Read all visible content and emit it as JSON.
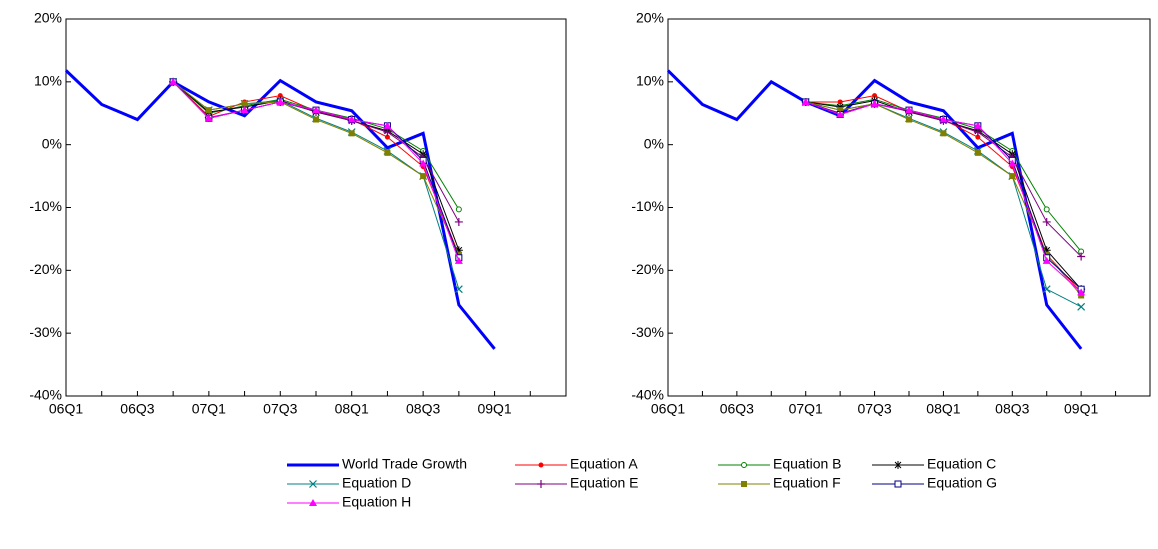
{
  "chart_data": [
    {
      "type": "line",
      "categories": [
        "06Q1",
        null,
        "06Q3",
        null,
        "07Q1",
        null,
        "07Q3",
        null,
        "08Q1",
        null,
        "08Q3",
        null,
        "09Q1",
        null
      ],
      "ylim": [
        -40,
        20
      ],
      "yticks": [
        {
          "value": -40,
          "label": "-40%"
        },
        {
          "value": -30,
          "label": "-30%"
        },
        {
          "value": -20,
          "label": "-20%"
        },
        {
          "value": -10,
          "label": "-10%"
        },
        {
          "value": 0,
          "label": "0%"
        },
        {
          "value": 10,
          "label": "10%"
        },
        {
          "value": 20,
          "label": "20%"
        }
      ],
      "series": [
        {
          "name": "World Trade Growth",
          "color": "#0000ff",
          "marker": "none",
          "values": [
            11.8,
            6.4,
            4.0,
            10.0,
            6.8,
            4.6,
            10.2,
            6.8,
            5.4,
            -0.5,
            1.8,
            -25.5,
            -32.5,
            null
          ]
        },
        {
          "name": "Equation A",
          "color": "#ff0000",
          "marker": "dot",
          "values": [
            null,
            null,
            null,
            10.0,
            4.5,
            6.8,
            7.8,
            5.3,
            4.0,
            1.2,
            -3.5,
            -17.5,
            null,
            null
          ]
        },
        {
          "name": "Equation B",
          "color": "#008000",
          "marker": "circle",
          "values": [
            null,
            null,
            null,
            10.0,
            5.0,
            6.2,
            7.2,
            5.5,
            4.2,
            2.5,
            -1.0,
            -10.3,
            null,
            null
          ]
        },
        {
          "name": "Equation C",
          "color": "#000000",
          "marker": "star",
          "values": [
            null,
            null,
            null,
            10.0,
            5.2,
            6.0,
            7.0,
            5.2,
            3.8,
            2.2,
            -1.5,
            -16.8,
            null,
            null
          ]
        },
        {
          "name": "Equation D",
          "color": "#008080",
          "marker": "x",
          "values": [
            null,
            null,
            null,
            10.0,
            5.5,
            6.5,
            7.0,
            4.2,
            2.0,
            -1.0,
            -5.0,
            -23.0,
            null,
            null
          ]
        },
        {
          "name": "Equation E",
          "color": "#800080",
          "marker": "plus",
          "values": [
            null,
            null,
            null,
            10.0,
            4.3,
            5.5,
            6.8,
            5.3,
            3.8,
            2.0,
            -2.0,
            -12.3,
            null,
            null
          ]
        },
        {
          "name": "Equation F",
          "color": "#808000",
          "marker": "square",
          "values": [
            null,
            null,
            null,
            10.0,
            5.5,
            6.5,
            6.8,
            4.0,
            1.8,
            -1.3,
            -5.0,
            -17.5,
            null,
            null
          ]
        },
        {
          "name": "Equation G",
          "color": "#000080",
          "marker": "hollow-square",
          "values": [
            null,
            null,
            null,
            10.0,
            4.2,
            5.5,
            6.8,
            5.5,
            4.0,
            3.0,
            -2.5,
            -18.0,
            null,
            null
          ]
        },
        {
          "name": "Equation H",
          "color": "#ff00ff",
          "marker": "triangle",
          "values": [
            null,
            null,
            null,
            10.0,
            4.2,
            5.5,
            6.8,
            5.5,
            4.0,
            3.0,
            -3.0,
            -18.5,
            null,
            null
          ]
        }
      ]
    },
    {
      "type": "line",
      "categories": [
        "06Q1",
        null,
        "06Q3",
        null,
        "07Q1",
        null,
        "07Q3",
        null,
        "08Q1",
        null,
        "08Q3",
        null,
        "09Q1",
        null
      ],
      "ylim": [
        -40,
        20
      ],
      "yticks": [
        {
          "value": -40,
          "label": "-40%"
        },
        {
          "value": -30,
          "label": "-30%"
        },
        {
          "value": -20,
          "label": "-20%"
        },
        {
          "value": -10,
          "label": "-10%"
        },
        {
          "value": 0,
          "label": "0%"
        },
        {
          "value": 10,
          "label": "10%"
        },
        {
          "value": 20,
          "label": "20%"
        }
      ],
      "series": [
        {
          "color": "#0000ff",
          "marker": "none",
          "values": [
            11.8,
            6.4,
            4.0,
            10.0,
            6.8,
            4.6,
            10.2,
            6.8,
            5.4,
            -0.5,
            1.8,
            -25.5,
            -32.5,
            null
          ]
        },
        {
          "color": "#ff0000",
          "marker": "dot",
          "values": [
            null,
            null,
            null,
            null,
            6.8,
            6.8,
            7.8,
            5.3,
            4.0,
            1.2,
            -3.5,
            -17.5,
            -23.5,
            null
          ]
        },
        {
          "color": "#008000",
          "marker": "circle",
          "values": [
            null,
            null,
            null,
            null,
            6.8,
            6.2,
            7.2,
            5.5,
            4.2,
            2.5,
            -1.0,
            -10.3,
            -17.0,
            null
          ]
        },
        {
          "color": "#000000",
          "marker": "star",
          "values": [
            null,
            null,
            null,
            null,
            6.8,
            6.0,
            7.0,
            5.2,
            3.8,
            2.2,
            -1.5,
            -16.8,
            -23.0,
            null
          ]
        },
        {
          "color": "#008080",
          "marker": "x",
          "values": [
            null,
            null,
            null,
            null,
            6.8,
            5.5,
            6.5,
            4.2,
            2.0,
            -1.0,
            -5.0,
            -23.0,
            -25.8,
            null
          ]
        },
        {
          "color": "#800080",
          "marker": "plus",
          "values": [
            null,
            null,
            null,
            null,
            6.8,
            5.0,
            6.5,
            5.3,
            3.8,
            2.0,
            -2.0,
            -12.3,
            -17.8,
            null
          ]
        },
        {
          "color": "#808000",
          "marker": "square",
          "values": [
            null,
            null,
            null,
            null,
            6.8,
            5.5,
            6.5,
            4.0,
            1.8,
            -1.3,
            -5.0,
            -17.5,
            -24.0,
            null
          ]
        },
        {
          "color": "#000080",
          "marker": "hollow-square",
          "values": [
            null,
            null,
            null,
            null,
            6.8,
            4.8,
            6.5,
            5.5,
            4.0,
            3.0,
            -2.5,
            -18.0,
            -23.0,
            null
          ]
        },
        {
          "color": "#ff00ff",
          "marker": "triangle",
          "values": [
            null,
            null,
            null,
            null,
            6.8,
            4.8,
            6.5,
            5.5,
            4.0,
            3.0,
            -3.0,
            -18.5,
            -23.5,
            null
          ]
        }
      ]
    }
  ]
}
